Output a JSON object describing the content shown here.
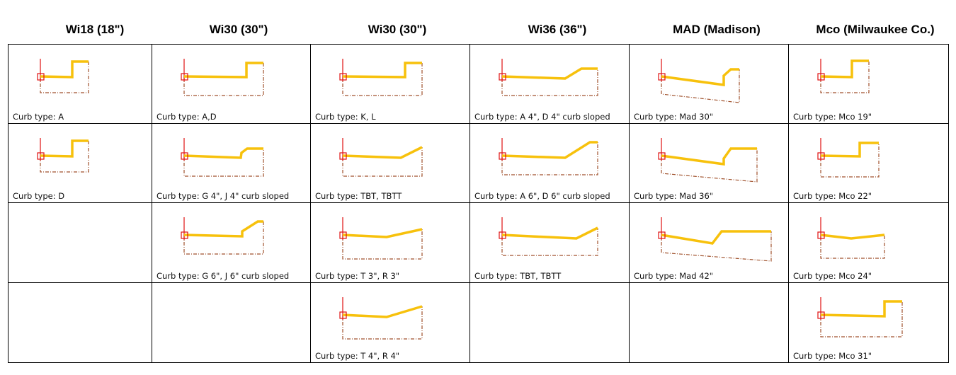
{
  "columns": [
    {
      "header": "Wi18 (18\")",
      "cells": [
        {
          "caption": "Curb type: A",
          "profile": "flat-vertical"
        },
        {
          "caption": "Curb type: D",
          "profile": "flat-vertical"
        },
        null,
        null
      ]
    },
    {
      "header": "Wi30 (30\")",
      "cells": [
        {
          "caption": "Curb type: A,D",
          "profile": "flat-vertical-wide"
        },
        {
          "caption": "Curb type: G 4\", J 4\" curb sloped",
          "profile": "sloped-curb-4"
        },
        {
          "caption": "Curb type: G 6\", J 6\" curb sloped",
          "profile": "sloped-curb-6"
        },
        null
      ]
    },
    {
      "header": "Wi30 (30\")",
      "cells": [
        {
          "caption": "Curb type: K, L",
          "profile": "flat-vertical-wide"
        },
        {
          "caption": "Curb type: TBT, TBTT",
          "profile": "slope-up-end"
        },
        {
          "caption": "Curb type: T 3\", R 3\"",
          "profile": "kink-slope-3"
        },
        {
          "caption": "Curb type: T 4\", R 4\"",
          "profile": "kink-slope-4"
        }
      ]
    },
    {
      "header": "Wi36 (36\")",
      "cells": [
        {
          "caption": "Curb type: A 4\", D 4\" curb sloped",
          "profile": "long-slope-4"
        },
        {
          "caption": "Curb type: A 6\", D 6\" curb sloped",
          "profile": "long-slope-6"
        },
        {
          "caption": "Curb type: TBT, TBTT",
          "profile": "slope-up-end-36"
        },
        null
      ]
    },
    {
      "header": "MAD (Madison)",
      "cells": [
        {
          "caption": "Curb type: Mad 30\"",
          "profile": "mad-30"
        },
        {
          "caption": "Curb type: Mad 36\"",
          "profile": "mad-36"
        },
        {
          "caption": "Curb type: Mad 42\"",
          "profile": "mad-42"
        },
        null
      ]
    },
    {
      "header": "Mco (Milwaukee Co.)",
      "cells": [
        {
          "caption": "Curb type: Mco 19\"",
          "profile": "mco-19"
        },
        {
          "caption": "Curb type: Mco 22\"",
          "profile": "mco-22"
        },
        {
          "caption": "Curb type: Mco 24\"",
          "profile": "mco-24"
        },
        {
          "caption": "Curb type: Mco 31\"",
          "profile": "mco-31"
        }
      ]
    }
  ],
  "colors": {
    "profile_line": "#F7C10C",
    "outline": "#A0522D",
    "marker": "#E01010",
    "grid": "#000000"
  }
}
